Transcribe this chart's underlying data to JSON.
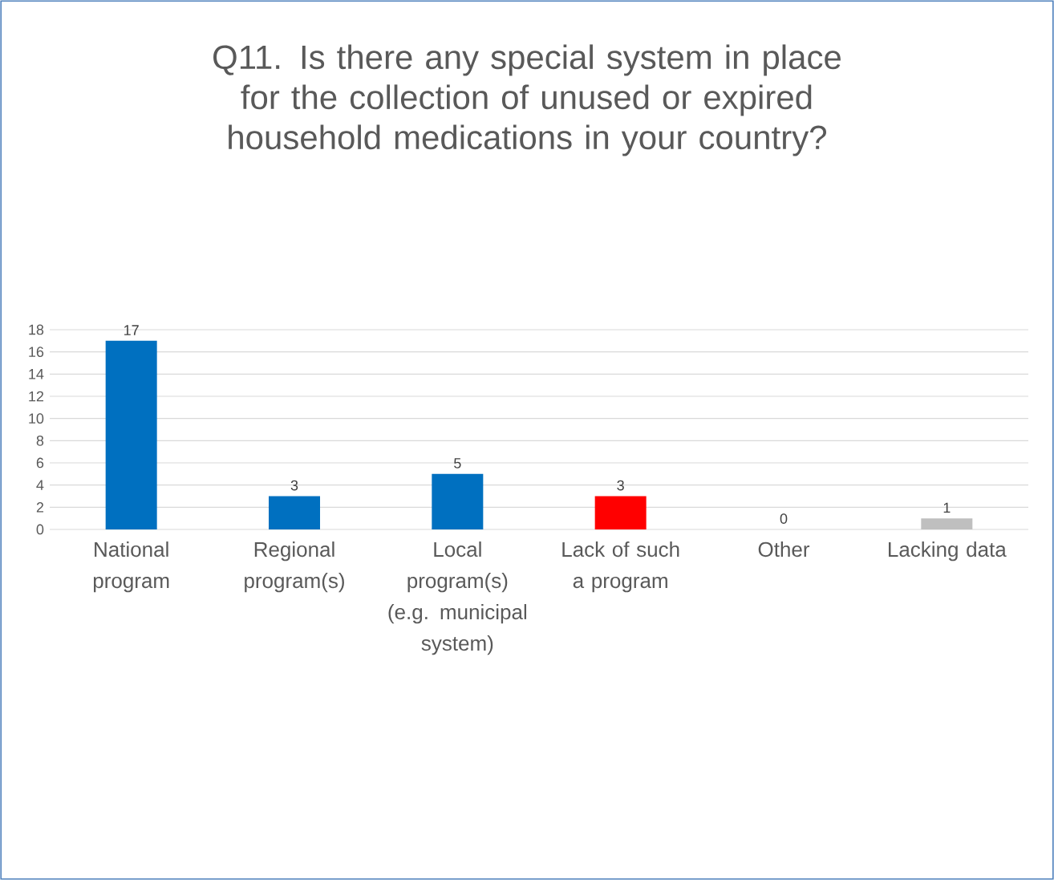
{
  "chart_data": {
    "type": "bar",
    "title": "Q11. Is there any special system in place for the collection of unused or expired household medications in your country?",
    "categories": [
      "National program",
      "Regional program(s)",
      "Local program(s) (e.g. municipal system)",
      "Lack of such a program",
      "Other",
      "Lacking data"
    ],
    "values": [
      17,
      3,
      5,
      3,
      0,
      1
    ],
    "colors": [
      "#0070c0",
      "#0070c0",
      "#0070c0",
      "#ff0000",
      "#0070c0",
      "#bfbfbf"
    ],
    "ylim": [
      0,
      18
    ],
    "yticks": [
      0,
      2,
      4,
      6,
      8,
      10,
      12,
      14,
      16,
      18
    ],
    "grid": "y",
    "data_labels": true
  }
}
